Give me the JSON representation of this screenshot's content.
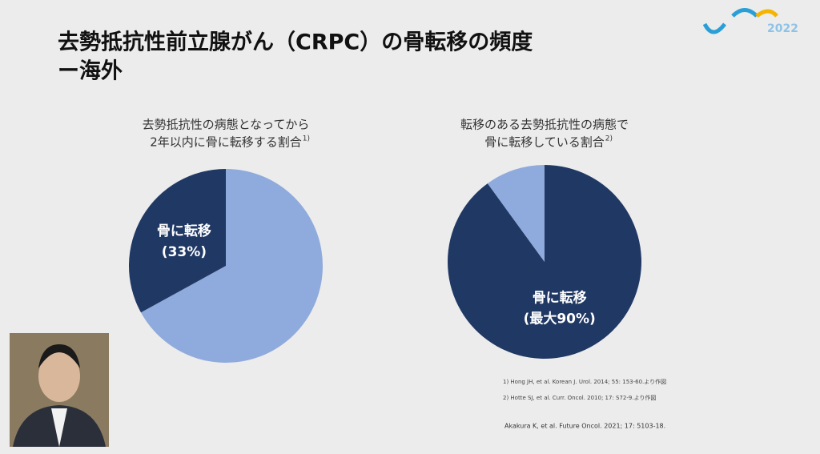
{
  "slide": {
    "title": [
      "去勢抵抗性前立腺がん（CRPC）の骨転移の頻度",
      "ー海外"
    ],
    "references": [
      "1) Hong JH, et al. Korean J. Urol. 2014; 55: 153-60.より作図",
      "2) Hotte SJ, et al. Curr. Oncol. 2010; 17: S72-9.より作図"
    ],
    "citation": "Akakura K, et al. Future Oncol. 2021; 17: 5103-18.",
    "logo": "2022"
  },
  "chart_data": [
    {
      "type": "pie",
      "title": [
        "去勢抵抗性の病態となってから",
        "2年以内に骨に転移する割合"
      ],
      "title_ref": "1)",
      "categories": [
        null,
        "骨に転移"
      ],
      "values": [
        67,
        33
      ],
      "value_labels": [
        null,
        "(33%)"
      ],
      "colors": [
        "#8faadc",
        "#203864"
      ]
    },
    {
      "type": "pie",
      "title": [
        "転移のある去勢抵抗性の病態で",
        "骨に転移している割合"
      ],
      "title_ref": "2)",
      "categories": [
        "骨に転移",
        null
      ],
      "values": [
        90,
        10
      ],
      "value_labels": [
        "(最大90%)",
        null
      ],
      "colors": [
        "#203864",
        "#8faadc"
      ]
    }
  ]
}
